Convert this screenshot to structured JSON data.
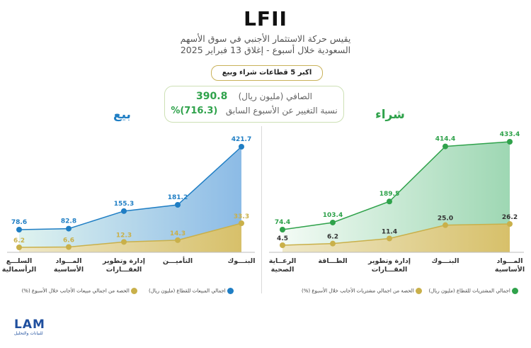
{
  "header": {
    "title": "LFII",
    "subtitle_line1": "يقيس حركة الاستثمار الأجنبي في سوق الأسهم",
    "subtitle_line2": "السعودية خلال أسبوع - إغلاق 13 فبراير 2025",
    "pill": "اكبر 5 قطاعات شراء وبيع"
  },
  "net": {
    "label": "الصافي (مليون ريال)",
    "value": "390.8",
    "change_label": "نسبة التغيير عن الأسبوع السابق",
    "change_value": "(716.3)%"
  },
  "colors": {
    "sell": "#1f7ec4",
    "buy": "#2fa24b",
    "share": "#c9b04a"
  },
  "brand": {
    "logo_text": "LAM",
    "logo_subtext": "للبيانات والتحليل"
  },
  "chart_data": [
    {
      "type": "area",
      "title": "بيع",
      "categories": [
        "السلع الرأسمالية",
        "المواد الأساسية",
        "إدارة وتطوير العقارات",
        "التأمين",
        "البنوك"
      ],
      "category_labels_lines": [
        [
          "السلـــع",
          "الرأسمالية"
        ],
        [
          "المـــواد",
          "الأساسية"
        ],
        [
          "إدارة وتطوير",
          "العقـــارات"
        ],
        [
          "التأميـــن"
        ],
        [
          "البنـــوك"
        ]
      ],
      "series": [
        {
          "name": "اجمالي المبيعات للقطاع (مليون ريال)",
          "values": [
            78.6,
            82.8,
            155.3,
            181.2,
            421.7
          ],
          "labels": [
            "78.6",
            "82.8",
            "155.3",
            "181.2",
            "421.7"
          ]
        },
        {
          "name": "الحصة من اجمالي مبيعات الأجانب خلال الأسبوع (%)",
          "values": [
            6.2,
            6.6,
            12.3,
            14.3,
            33.3
          ],
          "labels": [
            "6.2",
            "6.6",
            "12.3",
            "14.3",
            "33.3"
          ]
        }
      ]
    },
    {
      "type": "area",
      "title": "شراء",
      "categories": [
        "الرعاية الصحية",
        "الطاقة",
        "إدارة وتطوير العقارات",
        "البنوك",
        "المواد الأساسية"
      ],
      "category_labels_lines": [
        [
          "الرعــاية",
          "الصحية"
        ],
        [
          "الطـــاقة"
        ],
        [
          "إدارة وتطوير",
          "العقـــارات"
        ],
        [
          "البنـــوك"
        ],
        [
          "المـــواد",
          "الأساسية"
        ]
      ],
      "series": [
        {
          "name": "اجمالي المشتريات للقطاع (مليون ريال)",
          "values": [
            74.4,
            103.4,
            189.5,
            414.4,
            433.4
          ],
          "labels": [
            "74.4",
            "103.4",
            "189.5",
            "414.4",
            "433.4"
          ]
        },
        {
          "name": "الحصة من اجمالي مشتريات الأجانب خلال الأسبوع (%)",
          "values": [
            4.5,
            6.2,
            11.4,
            25.0,
            26.2
          ],
          "labels": [
            "4.5",
            "6.2",
            "11.4",
            "25.0",
            "26.2"
          ]
        }
      ]
    }
  ]
}
